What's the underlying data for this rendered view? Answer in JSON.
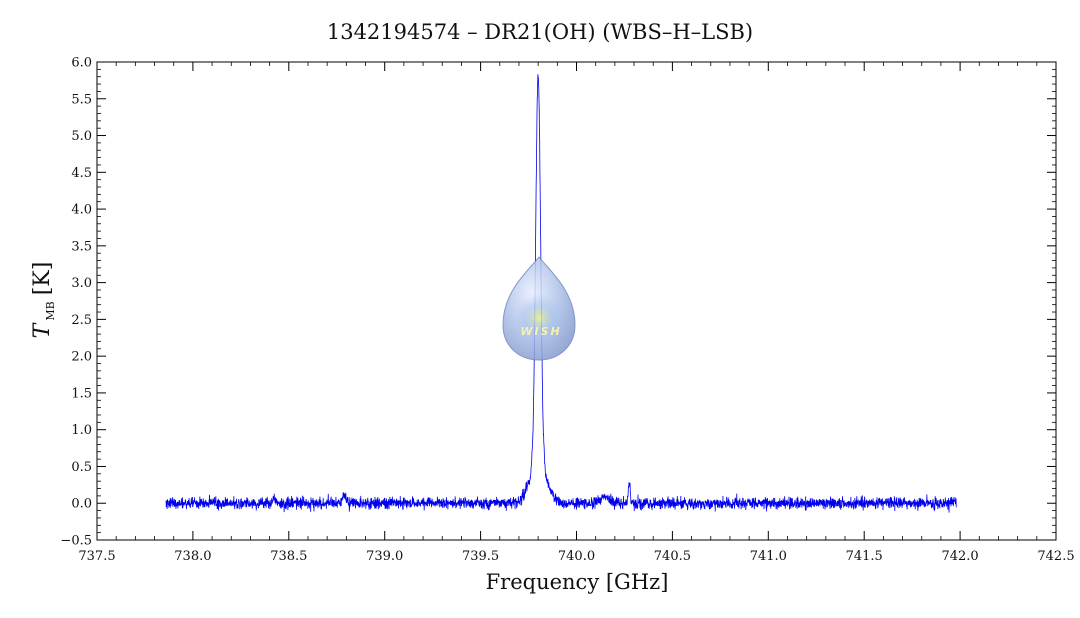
{
  "chart_data": {
    "type": "line",
    "title": "1342194574 – DR21(OH) (WBS–H–LSB)",
    "xlabel": "Frequency [GHz]",
    "ylabel": {
      "main": "T",
      "sub": "MB",
      "unit": "[K]"
    },
    "xlim": [
      737.5,
      742.5
    ],
    "ylim": [
      -0.5,
      6.0
    ],
    "x_ticks": [
      "737.5",
      "738.0",
      "738.5",
      "739.0",
      "739.5",
      "740.0",
      "740.5",
      "741.0",
      "741.5",
      "742.0",
      "742.5"
    ],
    "y_ticks": [
      "−0.5",
      "0.0",
      "0.5",
      "1.0",
      "1.5",
      "2.0",
      "2.5",
      "3.0",
      "3.5",
      "4.0",
      "4.5",
      "5.0",
      "5.5",
      "6.0"
    ],
    "grid": false,
    "series": [
      {
        "color": "#0000ee",
        "x_range": [
          737.86,
          741.98
        ],
        "noise_rms": 0.04,
        "features": [
          {
            "type": "peak",
            "center": 739.8,
            "amplitude": 5.25,
            "fwhm": 0.03
          },
          {
            "type": "peak",
            "center": 739.8,
            "amplitude": 0.55,
            "fwhm": 0.1
          },
          {
            "type": "peak",
            "center": 740.275,
            "amplitude": 0.3,
            "fwhm": 0.012
          },
          {
            "type": "peak",
            "center": 740.15,
            "amplitude": 0.1,
            "fwhm": 0.05
          },
          {
            "type": "peak",
            "center": 738.79,
            "amplitude": 0.12,
            "fwhm": 0.02
          },
          {
            "type": "peak",
            "center": 738.42,
            "amplitude": 0.08,
            "fwhm": 0.02
          }
        ]
      }
    ]
  },
  "logo": {
    "name": "wish-logo",
    "text": "WISH"
  }
}
